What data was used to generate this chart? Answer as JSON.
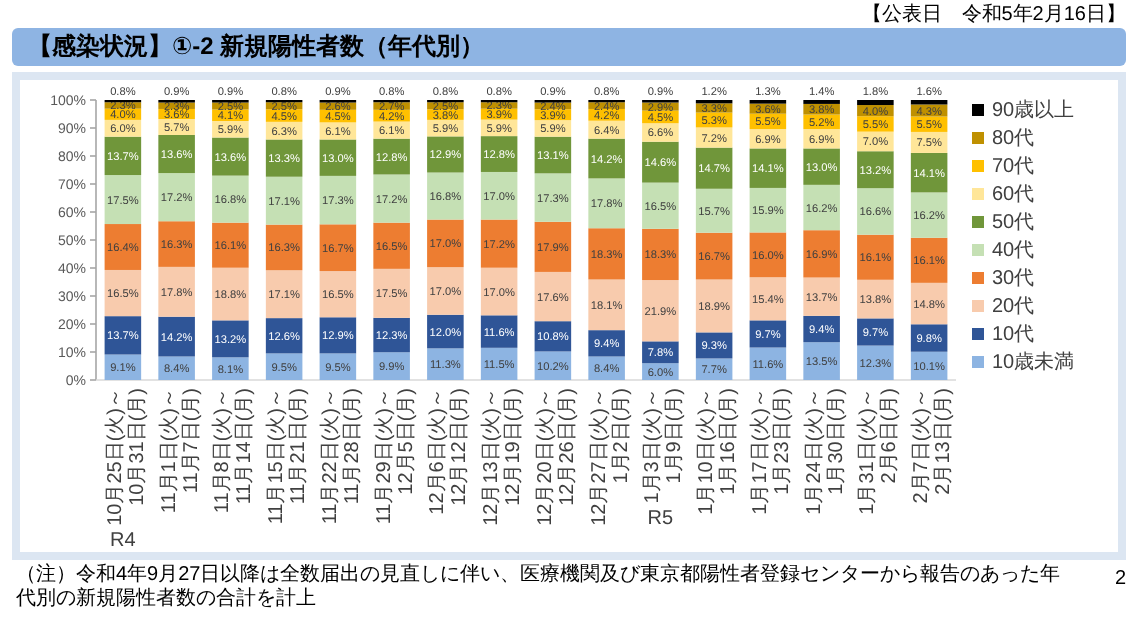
{
  "chart_data": {
    "type": "bar",
    "stacked": true,
    "title": "【感染状況】①-2 新規陽性者数（年代別）",
    "annotations": [
      "【公表日　令和5年2月16日】",
      "（注）令和4年9月27日以降は全数届出の見直しに伴い、医療機関及び東京都陽性者登録センターから報告のあった年代別の新規陽性者数の合計を計上",
      "2"
    ],
    "categories": [
      "10月25日(火)～\n10月31日(月)\nR4",
      "11月1日(火)～\n11月7日(月)",
      "11月8日(火)～\n11月14日(月)",
      "11月15日(火)～\n11月21日(月)",
      "11月22日(火)～\n11月28日(月)",
      "11月29日(火)～\n12月5日(月)",
      "12月6日(火)～\n12月12日(月)",
      "12月13日(火)～\n12月19日(月)",
      "12月20日(火)～\n12月26日(月)",
      "12月27日(火)～\n1月2日(月)",
      "1月3日(火)～\n1月9日(月)\nR5",
      "1月10日(火)～\n1月16日(月)",
      "1月17日(火)～\n1月23日(月)",
      "1月24日(火)～\n1月30日(月)",
      "1月31日(火)～\n2月6日(月)",
      "2月7日(火)～\n2月13日(月)"
    ],
    "ylim": [
      0,
      100
    ],
    "yticks": [
      {
        "value": 0,
        "label": "0%"
      },
      {
        "value": 10,
        "label": "10%"
      },
      {
        "value": 20,
        "label": "20%"
      },
      {
        "value": 30,
        "label": "30%"
      },
      {
        "value": 40,
        "label": "40%"
      },
      {
        "value": 50,
        "label": "50%"
      },
      {
        "value": 60,
        "label": "60%"
      },
      {
        "value": 70,
        "label": "70%"
      },
      {
        "value": 80,
        "label": "80%"
      },
      {
        "value": 90,
        "label": "90%"
      },
      {
        "value": 100,
        "label": "100%"
      }
    ],
    "legend": "right",
    "series": [
      {
        "name": "10歳未満",
        "color": "#8db4e2",
        "values": [
          9.1,
          8.4,
          8.1,
          9.5,
          9.5,
          9.9,
          11.3,
          11.5,
          10.2,
          8.4,
          6.0,
          7.7,
          11.6,
          13.5,
          12.3,
          10.1
        ],
        "value_labels": [
          "9.1%",
          "8.4%",
          "8.1%",
          "9.5%",
          "9.5%",
          "9.9%",
          "11.3%",
          "11.5%",
          "10.2%",
          "8.4%",
          "6.0%",
          "7.7%",
          "11.6%",
          "13.5%",
          "12.3%",
          "10.1%"
        ]
      },
      {
        "name": "10代",
        "color": "#2f5597",
        "values": [
          13.7,
          14.2,
          13.2,
          12.6,
          12.9,
          12.3,
          12.0,
          11.6,
          10.8,
          9.4,
          7.8,
          9.3,
          9.7,
          9.4,
          9.7,
          9.8
        ],
        "value_labels": [
          "13.7%",
          "14.2%",
          "13.2%",
          "12.6%",
          "12.9%",
          "12.3%",
          "12.0%",
          "11.6%",
          "10.8%",
          "9.4%",
          "7.8%",
          "9.3%",
          "9.7%",
          "9.4%",
          "9.7%",
          "9.8%"
        ]
      },
      {
        "name": "20代",
        "color": "#f8cbad",
        "values": [
          16.5,
          17.8,
          18.8,
          17.1,
          16.5,
          17.5,
          17.0,
          17.0,
          17.6,
          18.1,
          21.9,
          18.9,
          15.4,
          13.7,
          13.8,
          14.8
        ],
        "value_labels": [
          "16.5%",
          "17.8%",
          "18.8%",
          "17.1%",
          "16.5%",
          "17.5%",
          "17.0%",
          "17.0%",
          "17.6%",
          "18.1%",
          "21.9%",
          "18.9%",
          "15.4%",
          "13.7%",
          "13.8%",
          "14.8%"
        ]
      },
      {
        "name": "30代",
        "color": "#ed7d31",
        "values": [
          16.4,
          16.3,
          16.1,
          16.3,
          16.7,
          16.5,
          17.0,
          17.2,
          17.9,
          18.3,
          18.3,
          16.7,
          16.0,
          16.9,
          16.1,
          16.1
        ],
        "value_labels": [
          "16.4%",
          "16.3%",
          "16.1%",
          "16.3%",
          "16.7%",
          "16.5%",
          "17.0%",
          "17.2%",
          "17.9%",
          "18.3%",
          "18.3%",
          "16.7%",
          "16.0%",
          "16.9%",
          "16.1%",
          "16.1%"
        ]
      },
      {
        "name": "40代",
        "color": "#c5e0b4",
        "values": [
          17.5,
          17.2,
          16.8,
          17.1,
          17.3,
          17.2,
          16.8,
          17.0,
          17.3,
          17.8,
          16.5,
          15.7,
          15.9,
          16.2,
          16.6,
          16.2
        ],
        "value_labels": [
          "17.5%",
          "17.2%",
          "16.8%",
          "17.1%",
          "17.3%",
          "17.2%",
          "16.8%",
          "17.0%",
          "17.3%",
          "17.8%",
          "16.5%",
          "15.7%",
          "15.9%",
          "16.2%",
          "16.6%",
          "16.2%"
        ]
      },
      {
        "name": "50代",
        "color": "#70963a",
        "values": [
          13.7,
          13.6,
          13.6,
          13.3,
          13.0,
          12.8,
          12.9,
          12.8,
          13.1,
          14.2,
          14.6,
          14.7,
          14.1,
          13.0,
          13.2,
          14.1
        ],
        "value_labels": [
          "13.7%",
          "13.6%",
          "13.6%",
          "13.3%",
          "13.0%",
          "12.8%",
          "12.9%",
          "12.8%",
          "13.1%",
          "14.2%",
          "14.6%",
          "14.7%",
          "14.1%",
          "13.0%",
          "13.2%",
          "14.1%"
        ]
      },
      {
        "name": "60代",
        "color": "#ffe699",
        "values": [
          6.0,
          5.7,
          5.9,
          6.3,
          6.1,
          6.1,
          5.9,
          5.9,
          5.9,
          6.4,
          6.6,
          7.2,
          6.9,
          6.9,
          7.0,
          7.5
        ],
        "value_labels": [
          "6.0%",
          "5.7%",
          "5.9%",
          "6.3%",
          "6.1%",
          "6.1%",
          "5.9%",
          "5.9%",
          "5.9%",
          "6.4%",
          "6.6%",
          "7.2%",
          "6.9%",
          "6.9%",
          "7.0%",
          "7.5%"
        ]
      },
      {
        "name": "70代",
        "color": "#ffc000",
        "values": [
          4.0,
          3.6,
          4.1,
          4.5,
          4.5,
          4.2,
          3.8,
          3.9,
          3.9,
          4.2,
          4.5,
          5.3,
          5.5,
          5.2,
          5.5,
          5.5
        ],
        "value_labels": [
          "4.0%",
          "3.6%",
          "4.1%",
          "4.5%",
          "4.5%",
          "4.2%",
          "3.8%",
          "3.9%",
          "3.9%",
          "4.2%",
          "4.5%",
          "5.3%",
          "5.5%",
          "5.2%",
          "5.5%",
          "5.5%"
        ]
      },
      {
        "name": "80代",
        "color": "#bf9000",
        "values": [
          2.3,
          2.3,
          2.5,
          2.5,
          2.6,
          2.7,
          2.5,
          2.3,
          2.4,
          2.4,
          2.9,
          3.3,
          3.6,
          3.8,
          4.0,
          4.3
        ],
        "value_labels": [
          "2.3%",
          "2.3%",
          "2.5%",
          "2.5%",
          "2.6%",
          "2.7%",
          "2.5%",
          "2.3%",
          "2.4%",
          "2.4%",
          "2.9%",
          "3.3%",
          "3.6%",
          "3.8%",
          "4.0%",
          "4.3%"
        ]
      },
      {
        "name": "90歳以上",
        "color": "#000000",
        "values": [
          0.8,
          0.9,
          0.9,
          0.8,
          0.9,
          0.8,
          0.8,
          0.8,
          0.9,
          0.8,
          0.9,
          1.2,
          1.3,
          1.4,
          1.8,
          1.6
        ],
        "value_labels": [
          "0.8%",
          "0.9%",
          "0.9%",
          "0.8%",
          "0.9%",
          "0.8%",
          "0.8%",
          "0.8%",
          "0.9%",
          "0.8%",
          "0.9%",
          "1.2%",
          "1.3%",
          "1.4%",
          "1.8%",
          "1.6%"
        ]
      }
    ]
  }
}
